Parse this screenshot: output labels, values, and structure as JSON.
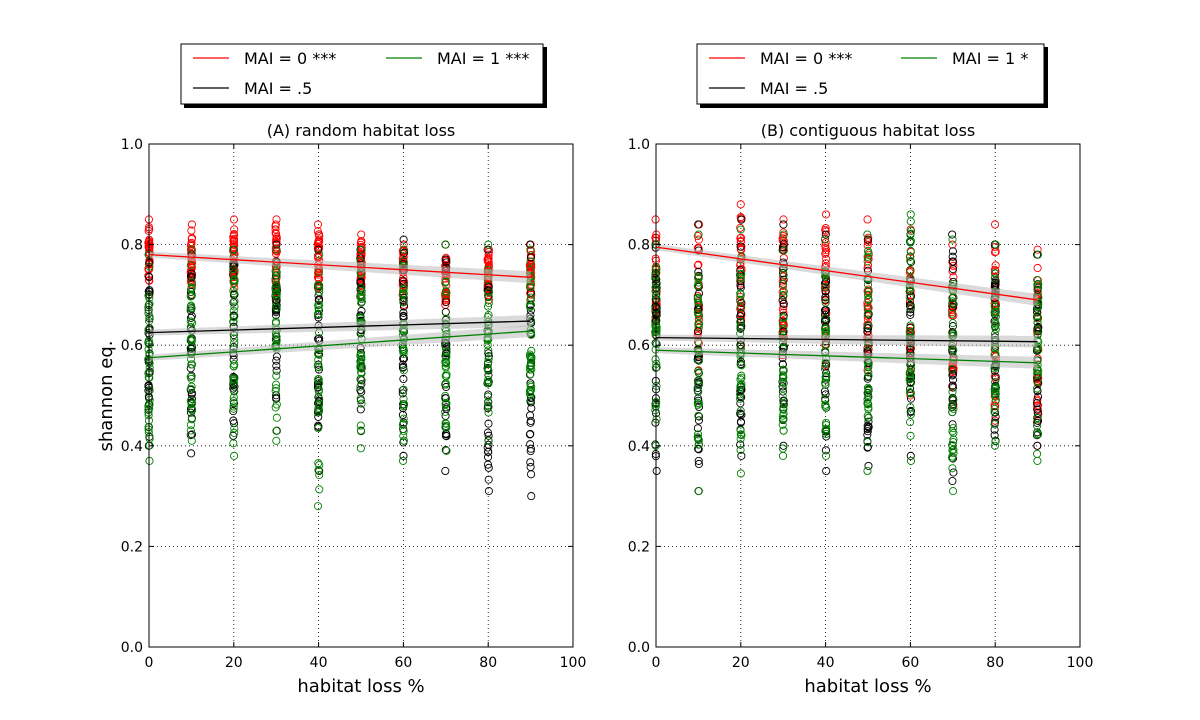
{
  "figure": {
    "ylabel": "shannon eq.",
    "xlabel": "habitat loss %"
  },
  "colors": {
    "mai0": "#ff0000",
    "mai05": "#000000",
    "mai1": "#008000"
  },
  "chart_data": [
    {
      "type": "scatter",
      "title": "(A) random habitat loss",
      "xlabel": "habitat loss %",
      "ylabel": "shannon eq.",
      "xlim": [
        0,
        100
      ],
      "ylim": [
        0.0,
        1.0
      ],
      "xticks": [
        "0",
        "20",
        "40",
        "60",
        "80",
        "100"
      ],
      "yticks": [
        "0.0",
        "0.2",
        "0.4",
        "0.6",
        "0.8",
        "1.0"
      ],
      "grid": true,
      "legend_position": "above",
      "x": [
        0,
        10,
        20,
        30,
        40,
        50,
        60,
        70,
        80,
        90
      ],
      "series": [
        {
          "name": "MAI = 0 ***",
          "color": "#ff0000",
          "fit": {
            "x": [
              0,
              90
            ],
            "y": [
              0.78,
              0.735
            ]
          },
          "spread": [
            [
              0.7,
              0.85
            ],
            [
              0.7,
              0.84
            ],
            [
              0.7,
              0.85
            ],
            [
              0.69,
              0.85
            ],
            [
              0.69,
              0.84
            ],
            [
              0.7,
              0.82
            ],
            [
              0.68,
              0.8
            ],
            [
              0.68,
              0.8
            ],
            [
              0.69,
              0.79
            ],
            [
              0.69,
              0.8
            ]
          ]
        },
        {
          "name": "MAI = .5",
          "color": "#000000",
          "fit": {
            "x": [
              0,
              90
            ],
            "y": [
              0.625,
              0.648
            ]
          },
          "spread": [
            [
              0.4,
              0.78
            ],
            [
              0.385,
              0.78
            ],
            [
              0.42,
              0.79
            ],
            [
              0.43,
              0.8
            ],
            [
              0.35,
              0.79
            ],
            [
              0.43,
              0.79
            ],
            [
              0.38,
              0.81
            ],
            [
              0.35,
              0.8
            ],
            [
              0.31,
              0.79
            ],
            [
              0.3,
              0.8
            ]
          ]
        },
        {
          "name": "MAI = 1 ***",
          "color": "#008000",
          "fit": {
            "x": [
              0,
              90
            ],
            "y": [
              0.575,
              0.628
            ]
          },
          "spread": [
            [
              0.37,
              0.78
            ],
            [
              0.41,
              0.79
            ],
            [
              0.38,
              0.79
            ],
            [
              0.41,
              0.79
            ],
            [
              0.28,
              0.78
            ],
            [
              0.395,
              0.79
            ],
            [
              0.37,
              0.79
            ],
            [
              0.39,
              0.8
            ],
            [
              0.41,
              0.8
            ],
            [
              0.49,
              0.79
            ]
          ]
        }
      ]
    },
    {
      "type": "scatter",
      "title": "(B) contiguous habitat loss",
      "xlabel": "habitat loss %",
      "ylabel": "",
      "xlim": [
        0,
        100
      ],
      "ylim": [
        0.0,
        1.0
      ],
      "xticks": [
        "0",
        "20",
        "40",
        "60",
        "80",
        "100"
      ],
      "yticks": [
        "0.0",
        "0.2",
        "0.4",
        "0.6",
        "0.8",
        "1.0"
      ],
      "grid": true,
      "legend_position": "above",
      "x": [
        0,
        10,
        20,
        30,
        40,
        50,
        60,
        70,
        80,
        90
      ],
      "series": [
        {
          "name": "MAI = 0 ***",
          "color": "#ff0000",
          "fit": {
            "x": [
              0,
              90
            ],
            "y": [
              0.795,
              0.69
            ]
          },
          "spread": [
            [
              0.62,
              0.85
            ],
            [
              0.55,
              0.84
            ],
            [
              0.6,
              0.88
            ],
            [
              0.58,
              0.85
            ],
            [
              0.56,
              0.86
            ],
            [
              0.55,
              0.85
            ],
            [
              0.5,
              0.83
            ],
            [
              0.48,
              0.8
            ],
            [
              0.45,
              0.84
            ],
            [
              0.4,
              0.79
            ]
          ]
        },
        {
          "name": "MAI = .5",
          "color": "#000000",
          "fit": {
            "x": [
              0,
              90
            ],
            "y": [
              0.615,
              0.607
            ]
          },
          "spread": [
            [
              0.35,
              0.8
            ],
            [
              0.31,
              0.84
            ],
            [
              0.38,
              0.85
            ],
            [
              0.4,
              0.84
            ],
            [
              0.35,
              0.82
            ],
            [
              0.36,
              0.81
            ],
            [
              0.38,
              0.82
            ],
            [
              0.33,
              0.82
            ],
            [
              0.41,
              0.8
            ],
            [
              0.4,
              0.78
            ]
          ]
        },
        {
          "name": "MAI = 1 *",
          "color": "#008000",
          "fit": {
            "x": [
              0,
              90
            ],
            "y": [
              0.59,
              0.565
            ]
          },
          "spread": [
            [
              0.4,
              0.8
            ],
            [
              0.31,
              0.82
            ],
            [
              0.345,
              0.83
            ],
            [
              0.38,
              0.82
            ],
            [
              0.38,
              0.81
            ],
            [
              0.35,
              0.82
            ],
            [
              0.37,
              0.86
            ],
            [
              0.31,
              0.81
            ],
            [
              0.4,
              0.8
            ],
            [
              0.37,
              0.78
            ]
          ]
        }
      ]
    }
  ]
}
